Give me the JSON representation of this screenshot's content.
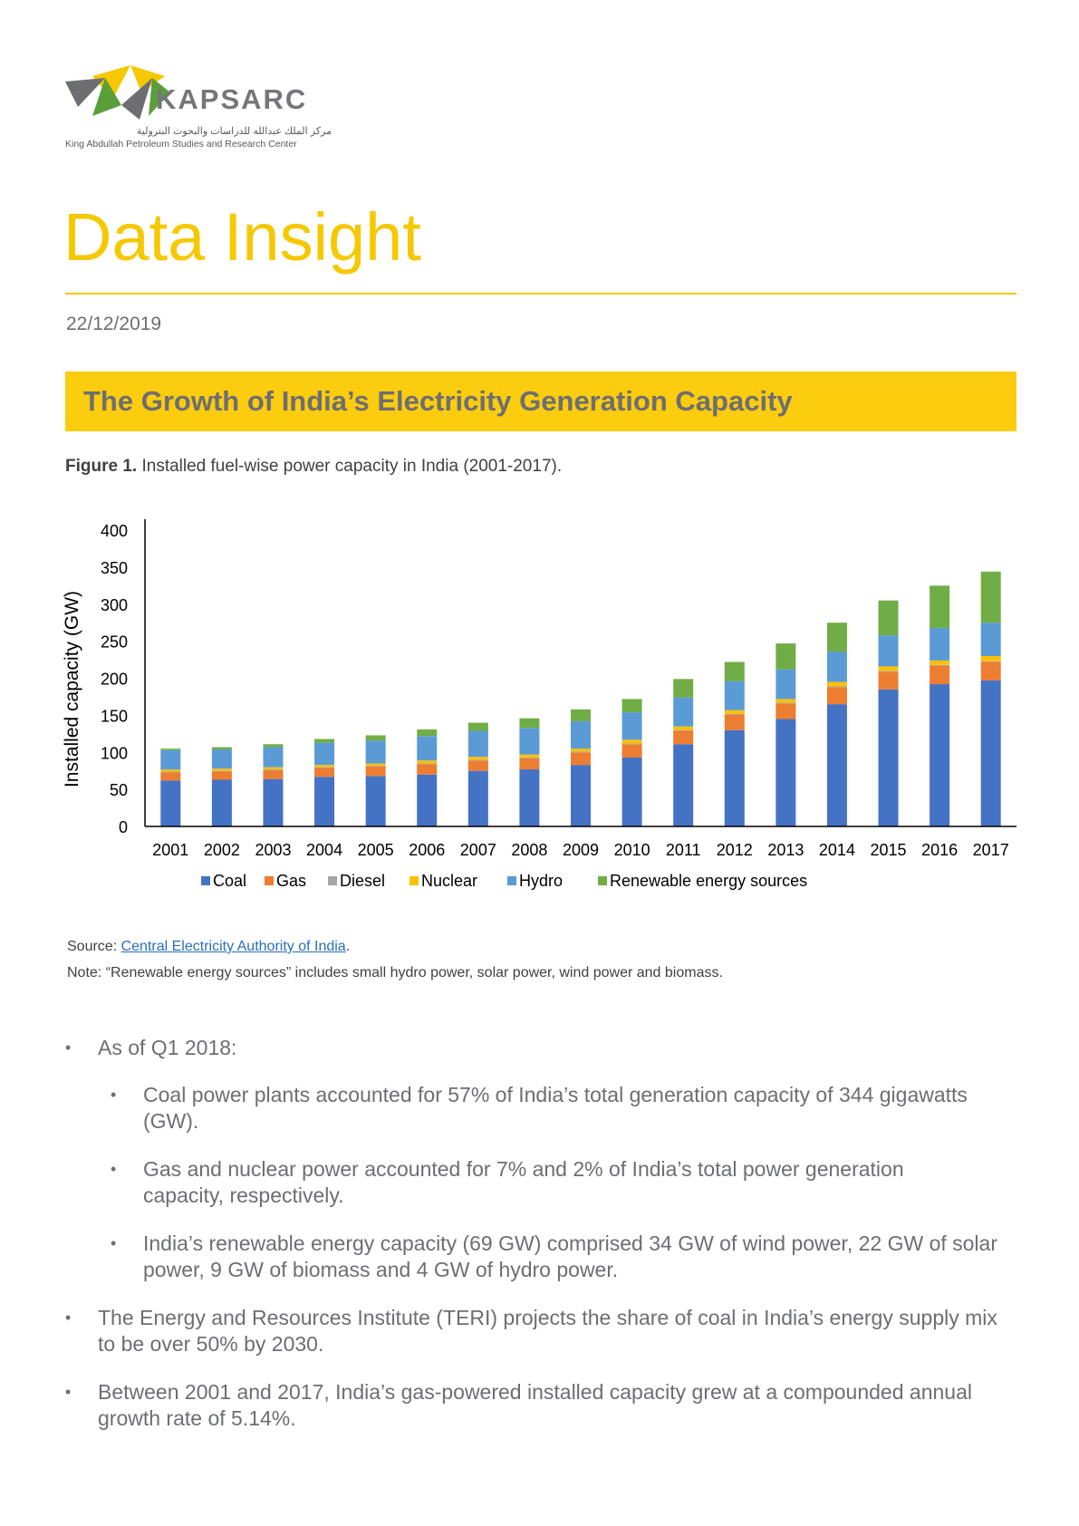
{
  "header": {
    "org_name": "KAPSARC",
    "org_arabic": "مركز الملك عبدالله للدراسات والبحوث البترولية",
    "org_full": "King Abdullah Petroleum Studies and Research Center",
    "doc_type": "Data Insight",
    "date": "22/12/2019"
  },
  "banner": {
    "title": "The Growth of India’s Electricity Generation Capacity"
  },
  "figure": {
    "label": "Figure 1.",
    "caption": "Installed fuel-wise power capacity in India (2001-2017)."
  },
  "chart_data": {
    "type": "bar",
    "stacked": true,
    "title": "",
    "xlabel": "",
    "ylabel": "Installed capacity (GW)",
    "ylim": [
      0,
      400
    ],
    "yticks": [
      0,
      50,
      100,
      150,
      200,
      250,
      300,
      350,
      400
    ],
    "categories": [
      "2001",
      "2002",
      "2003",
      "2004",
      "2005",
      "2006",
      "2007",
      "2008",
      "2009",
      "2010",
      "2011",
      "2012",
      "2013",
      "2014",
      "2015",
      "2016",
      "2017"
    ],
    "series": [
      {
        "name": "Coal",
        "color": "#4472c4",
        "values": [
          62,
          63,
          64,
          67,
          68,
          70,
          75,
          77,
          83,
          93,
          111,
          130,
          145,
          165,
          185,
          192,
          197
        ]
      },
      {
        "name": "Gas",
        "color": "#ed7d31",
        "values": [
          11,
          11,
          12,
          12,
          13,
          14,
          14,
          15,
          17,
          18,
          18,
          21,
          21,
          23,
          24,
          25,
          25
        ]
      },
      {
        "name": "Diesel",
        "color": "#a5a5a5",
        "values": [
          1,
          1,
          1,
          1,
          1,
          1,
          1,
          1,
          1,
          1,
          1,
          1,
          1,
          1,
          1,
          1,
          1
        ]
      },
      {
        "name": "Nuclear",
        "color": "#ffc000",
        "values": [
          3,
          3,
          3,
          3,
          3,
          4,
          4,
          4,
          4,
          5,
          5,
          5,
          5,
          6,
          6,
          6,
          7
        ]
      },
      {
        "name": "Hydro",
        "color": "#5b9bd5",
        "values": [
          26,
          26,
          27,
          30,
          31,
          33,
          35,
          36,
          37,
          37,
          39,
          39,
          40,
          41,
          42,
          44,
          45
        ]
      },
      {
        "name": "Renewable energy sources",
        "color": "#70ad47",
        "values": [
          2,
          3,
          4,
          5,
          7,
          9,
          11,
          13,
          16,
          18,
          25,
          26,
          35,
          39,
          47,
          57,
          69
        ]
      }
    ],
    "legend_position": "bottom"
  },
  "source": {
    "prefix": "Source: ",
    "link_text": "Central Electricity Authority of India",
    "suffix": "."
  },
  "note": "Note: “Renewable energy sources” includes small hydro power, solar power, wind power and biomass.",
  "bullets": {
    "marker": "•",
    "b1": "As of Q1 2018:",
    "b1a": "Coal power plants accounted for 57% of India’s total generation capacity of 344 gigawatts (GW).",
    "b1b": "Gas and nuclear power accounted for 7% and 2% of India’s total power generation capacity, respectively.",
    "b1c": "India’s renewable energy capacity (69 GW) comprised 34 GW of wind power, 22 GW of solar power, 9 GW of biomass and 4 GW of hydro power.",
    "b2": "The Energy and Resources Institute (TERI) projects the share of coal in India’s energy supply mix to be over 50% by 2030.",
    "b3": "Between 2001 and 2017, India’s gas-powered installed capacity grew at a compounded annual growth rate of 5.14%."
  }
}
